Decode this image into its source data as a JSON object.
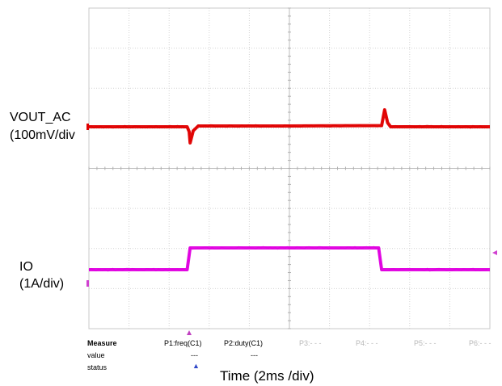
{
  "chart_data": {
    "type": "line",
    "title": "",
    "xlabel": "Time (2ms /div)",
    "ylabel": "",
    "x_divisions": 10,
    "y_divisions": 8,
    "grid": true,
    "x_unit": "ms",
    "x_per_div": 2,
    "xlim": [
      0,
      20
    ],
    "series": [
      {
        "name": "VOUT_AC",
        "scale_label": "(100mV/div",
        "color": "#e00000",
        "x": [
          0,
          4.9,
          5.0,
          5.05,
          5.2,
          5.45,
          10,
          14.6,
          14.75,
          14.9,
          15.05,
          20
        ],
        "values": [
          0,
          0,
          -0.12,
          -0.4,
          -0.1,
          0.02,
          0.02,
          0.03,
          0.42,
          0.1,
          0.0,
          0.0
        ]
      },
      {
        "name": "IO",
        "scale_label": "(1A/div)",
        "color": "#e000e0",
        "x": [
          0,
          4.9,
          5.05,
          12.2,
          14.45,
          14.6,
          20
        ],
        "values": [
          0,
          0,
          1.0,
          1.0,
          1.0,
          0,
          0
        ]
      }
    ]
  },
  "measure": {
    "header": "Measure",
    "row_value": "value",
    "row_status": "status",
    "columns": [
      {
        "label": "P1:freq(C1)",
        "value": "---",
        "dim": false
      },
      {
        "label": "P2:duty(C1)",
        "value": "---",
        "dim": false
      },
      {
        "label": "P3:- - -",
        "value": "",
        "dim": true
      },
      {
        "label": "P4:- - -",
        "value": "",
        "dim": true
      },
      {
        "label": "P5:- - -",
        "value": "",
        "dim": true
      },
      {
        "label": "P6:- - -",
        "value": "",
        "dim": true
      }
    ]
  }
}
